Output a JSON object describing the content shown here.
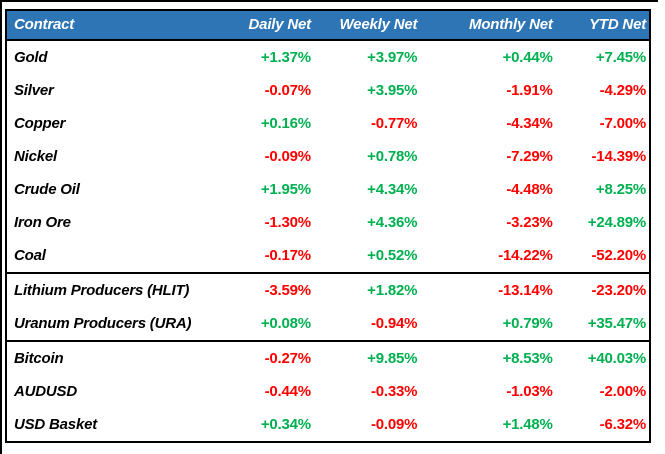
{
  "table": {
    "columns": [
      "Contract",
      "Daily Net",
      "Weekly Net",
      "Monthly Net",
      "YTD Net"
    ],
    "rows": [
      {
        "contract": "Gold",
        "daily": "+1.37%",
        "weekly": "+3.97%",
        "monthly": "+0.44%",
        "ytd": "+7.45%"
      },
      {
        "contract": "Silver",
        "daily": "-0.07%",
        "weekly": "+3.95%",
        "monthly": "-1.91%",
        "ytd": "-4.29%"
      },
      {
        "contract": "Copper",
        "daily": "+0.16%",
        "weekly": "-0.77%",
        "monthly": "-4.34%",
        "ytd": "-7.00%"
      },
      {
        "contract": "Nickel",
        "daily": "-0.09%",
        "weekly": "+0.78%",
        "monthly": "-7.29%",
        "ytd": "-14.39%"
      },
      {
        "contract": "Crude Oil",
        "daily": "+1.95%",
        "weekly": "+4.34%",
        "monthly": "-4.48%",
        "ytd": "+8.25%"
      },
      {
        "contract": "Iron Ore",
        "daily": "-1.30%",
        "weekly": "+4.36%",
        "monthly": "-3.23%",
        "ytd": "+24.89%"
      },
      {
        "contract": "Coal",
        "daily": "-0.17%",
        "weekly": "+0.52%",
        "monthly": "-14.22%",
        "ytd": "-52.20%"
      },
      {
        "contract": "Lithium Producers (HLIT)",
        "daily": "-3.59%",
        "weekly": "+1.82%",
        "monthly": "-13.14%",
        "ytd": "-23.20%"
      },
      {
        "contract": "Uranum Producers (URA)",
        "daily": "+0.08%",
        "weekly": "-0.94%",
        "monthly": "+0.79%",
        "ytd": "+35.47%"
      },
      {
        "contract": "Bitcoin",
        "daily": "-0.27%",
        "weekly": "+9.85%",
        "monthly": "+8.53%",
        "ytd": "+40.03%"
      },
      {
        "contract": "AUDUSD",
        "daily": "-0.44%",
        "weekly": "-0.33%",
        "monthly": "-1.03%",
        "ytd": "-2.00%"
      },
      {
        "contract": "USD Basket",
        "daily": "+0.34%",
        "weekly": "-0.09%",
        "monthly": "+1.48%",
        "ytd": "-6.32%"
      }
    ]
  },
  "colors": {
    "header_bg": "#2E75B6",
    "positive": "#00B050",
    "negative": "#FF0000",
    "border": "#000000"
  }
}
